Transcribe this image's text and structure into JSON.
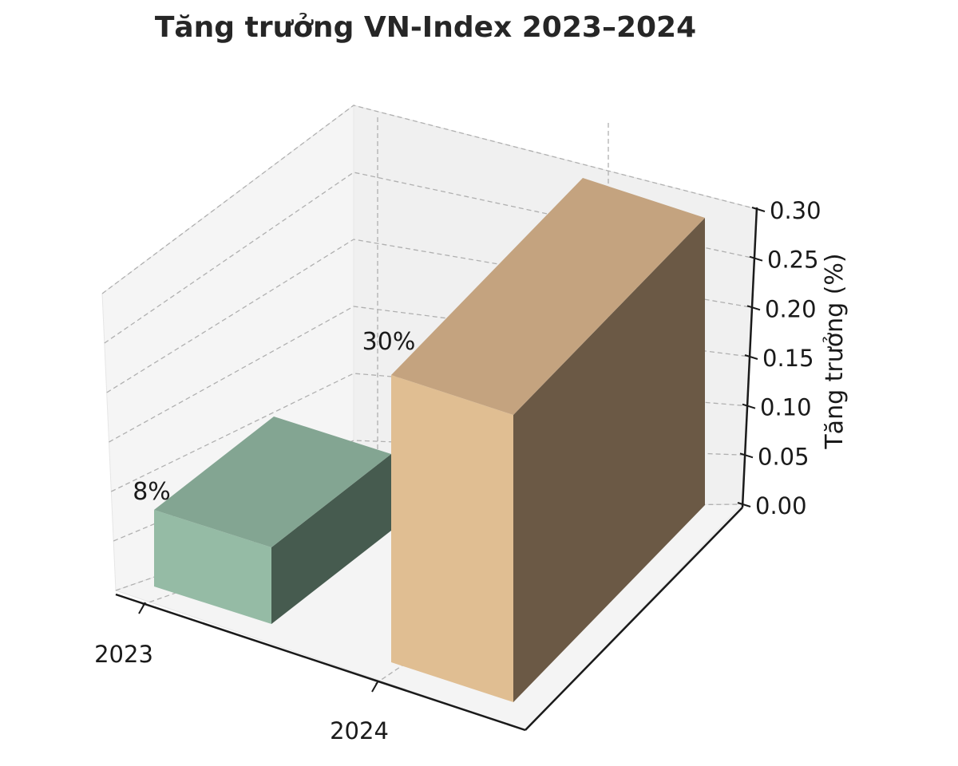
{
  "chart_data": {
    "type": "bar",
    "title": "Tăng trưởng VN-Index 2023–2024",
    "categories": [
      "2023",
      "2024"
    ],
    "values": [
      0.08,
      0.3
    ],
    "data_labels": [
      "8%",
      "30%"
    ],
    "ylabel": "Tăng trưởng (%)",
    "ylim": [
      0,
      0.3
    ],
    "yticks": [
      "0.00",
      "0.05",
      "0.10",
      "0.15",
      "0.20",
      "0.25",
      "0.30"
    ],
    "grid": true,
    "projection": "3d",
    "colors": {
      "2023": {
        "front": "#95bba5",
        "top": "#83a592",
        "side": "#465b4f"
      },
      "2024": {
        "front": "#e0be92",
        "top": "#c4a37f",
        "side": "#6b5945"
      }
    }
  }
}
